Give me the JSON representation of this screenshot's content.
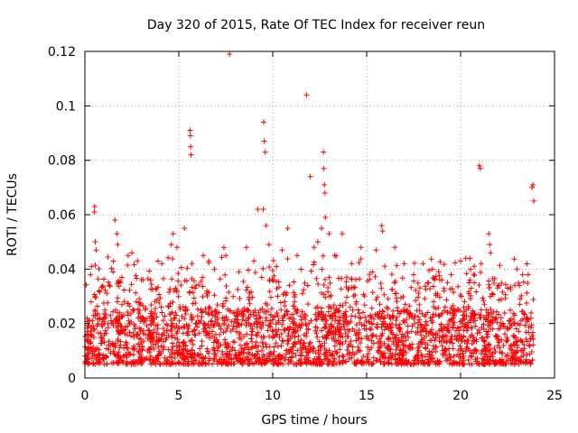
{
  "chart_data": {
    "type": "scatter",
    "title": "Day 320 of 2015, Rate Of TEC Index for receiver reun",
    "xlabel": "GPS time / hours",
    "ylabel": "ROTI / TECUs",
    "xlim": [
      0,
      25
    ],
    "ylim": [
      0,
      0.12
    ],
    "xticks": [
      0,
      5,
      10,
      15,
      20,
      25
    ],
    "yticks": [
      0,
      0.02,
      0.04,
      0.06,
      0.08,
      0.1,
      0.12
    ],
    "grid": true,
    "marker": "+",
    "color": "#ff0000",
    "series": [
      {
        "name": "ROTI",
        "baseline_band": [
          0.005,
          0.025
        ],
        "outliers": [
          [
            0.3,
            0.038
          ],
          [
            0.35,
            0.041
          ],
          [
            0.5,
            0.061
          ],
          [
            0.52,
            0.063
          ],
          [
            0.55,
            0.05
          ],
          [
            0.6,
            0.047
          ],
          [
            0.75,
            0.032
          ],
          [
            1.3,
            0.034
          ],
          [
            1.5,
            0.039
          ],
          [
            1.6,
            0.058
          ],
          [
            1.7,
            0.053
          ],
          [
            1.75,
            0.049
          ],
          [
            2.3,
            0.045
          ],
          [
            2.5,
            0.046
          ],
          [
            2.8,
            0.043
          ],
          [
            3.5,
            0.036
          ],
          [
            4.1,
            0.042
          ],
          [
            4.6,
            0.049
          ],
          [
            4.7,
            0.053
          ],
          [
            4.9,
            0.048
          ],
          [
            5.3,
            0.055
          ],
          [
            5.6,
            0.091
          ],
          [
            5.62,
            0.089
          ],
          [
            5.63,
            0.085
          ],
          [
            5.65,
            0.082
          ],
          [
            5.7,
            0.042
          ],
          [
            6.3,
            0.045
          ],
          [
            6.6,
            0.043
          ],
          [
            6.9,
            0.04
          ],
          [
            7.4,
            0.048
          ],
          [
            7.5,
            0.045
          ],
          [
            7.7,
            0.119
          ],
          [
            8.2,
            0.039
          ],
          [
            8.6,
            0.048
          ],
          [
            9.0,
            0.043
          ],
          [
            9.2,
            0.062
          ],
          [
            9.5,
            0.062
          ],
          [
            9.52,
            0.094
          ],
          [
            9.55,
            0.087
          ],
          [
            9.6,
            0.083
          ],
          [
            9.65,
            0.056
          ],
          [
            9.8,
            0.049
          ],
          [
            10.2,
            0.041
          ],
          [
            10.5,
            0.047
          ],
          [
            10.8,
            0.055
          ],
          [
            11.3,
            0.045
          ],
          [
            11.8,
            0.104
          ],
          [
            12.0,
            0.074
          ],
          [
            12.2,
            0.048
          ],
          [
            12.4,
            0.05
          ],
          [
            12.6,
            0.055
          ],
          [
            12.7,
            0.083
          ],
          [
            12.72,
            0.077
          ],
          [
            12.75,
            0.071
          ],
          [
            12.78,
            0.068
          ],
          [
            12.8,
            0.059
          ],
          [
            13.0,
            0.053
          ],
          [
            13.3,
            0.045
          ],
          [
            13.7,
            0.053
          ],
          [
            14.2,
            0.042
          ],
          [
            14.7,
            0.048
          ],
          [
            15.5,
            0.047
          ],
          [
            15.8,
            0.056
          ],
          [
            15.85,
            0.054
          ],
          [
            16.5,
            0.048
          ],
          [
            17.0,
            0.042
          ],
          [
            17.5,
            0.038
          ],
          [
            18.0,
            0.042
          ],
          [
            18.5,
            0.04
          ],
          [
            19.0,
            0.036
          ],
          [
            19.5,
            0.038
          ],
          [
            20.0,
            0.043
          ],
          [
            20.5,
            0.036
          ],
          [
            21.0,
            0.078
          ],
          [
            21.05,
            0.077
          ],
          [
            21.1,
            0.042
          ],
          [
            21.5,
            0.053
          ],
          [
            21.55,
            0.049
          ],
          [
            21.6,
            0.046
          ],
          [
            22.0,
            0.034
          ],
          [
            22.5,
            0.033
          ],
          [
            23.0,
            0.04
          ],
          [
            23.3,
            0.038
          ],
          [
            23.6,
            0.038
          ],
          [
            23.8,
            0.07
          ],
          [
            23.85,
            0.071
          ],
          [
            23.9,
            0.065
          ]
        ]
      }
    ]
  }
}
